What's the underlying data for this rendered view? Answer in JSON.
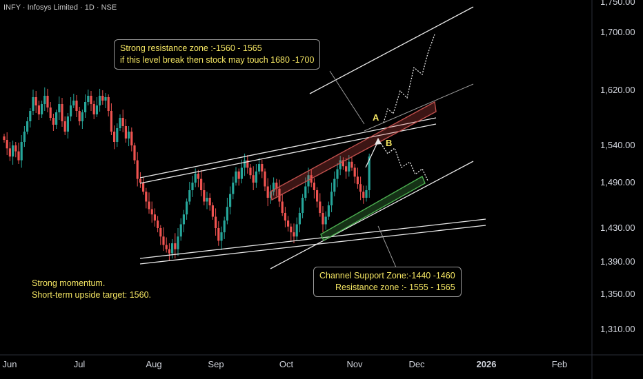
{
  "header": {
    "ticker": "INFY · Infosys Limited · 1D · NSE"
  },
  "chart_data": {
    "type": "candlestick",
    "ylim": [
      1290,
      1760
    ],
    "y_ticks": [
      "1,750.00",
      "1,700.00",
      "1,620.00",
      "1,540.00",
      "1,490.00",
      "1,430.00",
      "1,390.00",
      "1,350.00",
      "1,310.00"
    ],
    "y_tick_values": [
      1750,
      1700,
      1620,
      1540,
      1490,
      1430,
      1390,
      1350,
      1310
    ],
    "x_ticks": [
      "Jun",
      "Jul",
      "Aug",
      "Sep",
      "Oct",
      "Nov",
      "Dec",
      "2026",
      "Feb"
    ],
    "up_color": "#26a69a",
    "down_color": "#ef5350",
    "closes": [
      1548,
      1536,
      1525,
      1540,
      1532,
      1520,
      1545,
      1560,
      1575,
      1590,
      1610,
      1598,
      1585,
      1600,
      1612,
      1595,
      1580,
      1570,
      1588,
      1600,
      1575,
      1560,
      1582,
      1598,
      1605,
      1590,
      1575,
      1588,
      1603,
      1612,
      1600,
      1585,
      1598,
      1612,
      1605,
      1610,
      1590,
      1560,
      1545,
      1565,
      1580,
      1568,
      1550,
      1560,
      1540,
      1520,
      1495,
      1490,
      1478,
      1465,
      1455,
      1448,
      1440,
      1430,
      1420,
      1410,
      1405,
      1400,
      1412,
      1405,
      1420,
      1435,
      1448,
      1465,
      1480,
      1490,
      1502,
      1495,
      1480,
      1465,
      1470,
      1460,
      1445,
      1430,
      1415,
      1425,
      1440,
      1458,
      1475,
      1490,
      1505,
      1495,
      1510,
      1520,
      1510,
      1500,
      1490,
      1505,
      1515,
      1505,
      1485,
      1470,
      1478,
      1490,
      1482,
      1465,
      1450,
      1440,
      1432,
      1425,
      1420,
      1435,
      1450,
      1470,
      1485,
      1500,
      1490,
      1480,
      1465,
      1450,
      1435,
      1445,
      1460,
      1478,
      1495,
      1508,
      1520,
      1512,
      1505,
      1518,
      1510,
      1498,
      1488,
      1478,
      1470,
      1480,
      1525
    ],
    "annotations": [
      {
        "lines": [
          "Strong resistance zone :-1560 - 1565",
          "if this level break then stock may touch 1680 -1700"
        ]
      },
      {
        "lines": [
          "Channel Support Zone:-1440 -1460",
          "Resistance zone :- 1555 - 1565"
        ]
      },
      {
        "lines": [
          "Strong momentum.",
          "Short-term upside target: 1560."
        ]
      }
    ],
    "points": [
      "A",
      "B"
    ]
  }
}
